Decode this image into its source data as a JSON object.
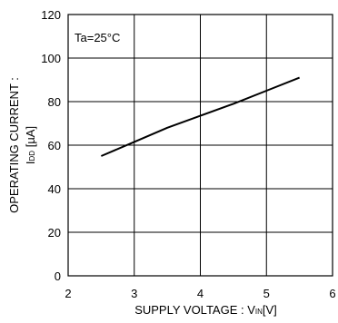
{
  "chart_data": {
    "type": "line",
    "title": "",
    "xlabel": {
      "main": "SUPPLY VOLTAGE : V",
      "sub": "IN",
      "unit": "[V]"
    },
    "ylabel": {
      "line1": "OPERATING CURRENT :",
      "main": "I",
      "sub": "DD",
      "unit": " [µA]"
    },
    "xlim": [
      2,
      6
    ],
    "ylim": [
      0,
      120
    ],
    "x_ticks": [
      2,
      3,
      4,
      5,
      6
    ],
    "y_ticks": [
      0,
      20,
      40,
      60,
      80,
      100,
      120
    ],
    "grid": true,
    "annotation": "Ta=25°C",
    "series": [
      {
        "color": "#000000",
        "x": [
          2.5,
          3.0,
          3.5,
          4.0,
          4.5,
          5.0,
          5.5
        ],
        "y": [
          55,
          61.5,
          68,
          73.5,
          79,
          85,
          91
        ]
      }
    ]
  }
}
